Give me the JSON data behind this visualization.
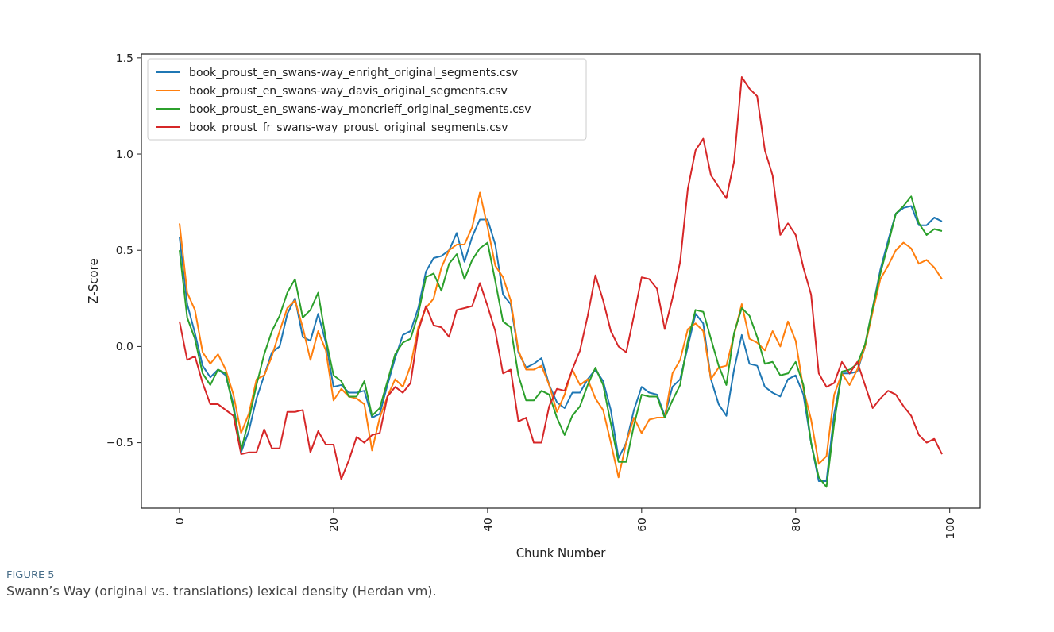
{
  "chart_data": {
    "type": "line",
    "xlabel": "Chunk Number",
    "ylabel": "Z-Score",
    "xlim": [
      -4.95,
      103.95
    ],
    "xticks": [
      0,
      20,
      40,
      60,
      80,
      100
    ],
    "ylim": [
      -0.84,
      1.52
    ],
    "yticks": [
      {
        "value": -0.5,
        "label": "−0.5"
      },
      {
        "value": 0,
        "label": "0.0"
      },
      {
        "value": 0.5,
        "label": "0.5"
      },
      {
        "value": 1,
        "label": "1.0"
      },
      {
        "value": 1.5,
        "label": "1.5"
      }
    ],
    "legend": "top left",
    "grid": false,
    "marker": "none",
    "line_style": "solid",
    "annotations": [
      "FIGURE 5",
      "Swann’s Way (original vs. translations) lexical density (Herdan vm)."
    ],
    "x": [
      0,
      1,
      2,
      3,
      4,
      5,
      6,
      7,
      8,
      9,
      10,
      11,
      12,
      13,
      14,
      15,
      16,
      17,
      18,
      19,
      20,
      21,
      22,
      23,
      24,
      25,
      26,
      27,
      28,
      29,
      30,
      31,
      32,
      33,
      34,
      35,
      36,
      37,
      38,
      39,
      40,
      41,
      42,
      43,
      44,
      45,
      46,
      47,
      48,
      49,
      50,
      51,
      52,
      53,
      54,
      55,
      56,
      57,
      58,
      59,
      60,
      61,
      62,
      63,
      64,
      65,
      66,
      67,
      68,
      69,
      70,
      71,
      72,
      73,
      74,
      75,
      76,
      77,
      78,
      79,
      80,
      81,
      82,
      83,
      84,
      85,
      86,
      87,
      88,
      89,
      90,
      91,
      92,
      93,
      94,
      95,
      96,
      97,
      98,
      99
    ],
    "series": [
      {
        "name": "book_proust_en_swans-way_enright_original_segments.csv",
        "color": "#1f77b4",
        "values": [
          0.57,
          0.22,
          0.07,
          -0.1,
          -0.16,
          -0.12,
          -0.15,
          -0.3,
          -0.55,
          -0.44,
          -0.27,
          -0.15,
          -0.03,
          0.0,
          0.17,
          0.25,
          0.05,
          0.03,
          0.17,
          0.02,
          -0.21,
          -0.2,
          -0.24,
          -0.24,
          -0.23,
          -0.37,
          -0.35,
          -0.2,
          -0.06,
          0.06,
          0.08,
          0.2,
          0.39,
          0.46,
          0.47,
          0.5,
          0.59,
          0.44,
          0.57,
          0.66,
          0.66,
          0.53,
          0.27,
          0.22,
          -0.03,
          -0.11,
          -0.09,
          -0.06,
          -0.2,
          -0.29,
          -0.32,
          -0.24,
          -0.24,
          -0.17,
          -0.12,
          -0.18,
          -0.33,
          -0.58,
          -0.5,
          -0.33,
          -0.21,
          -0.24,
          -0.25,
          -0.36,
          -0.21,
          -0.17,
          0.0,
          0.17,
          0.12,
          -0.17,
          -0.3,
          -0.36,
          -0.12,
          0.06,
          -0.09,
          -0.1,
          -0.21,
          -0.24,
          -0.26,
          -0.17,
          -0.15,
          -0.25,
          -0.5,
          -0.7,
          -0.7,
          -0.35,
          -0.14,
          -0.14,
          -0.13,
          0.0,
          0.2,
          0.4,
          0.55,
          0.69,
          0.72,
          0.73,
          0.63,
          0.63,
          0.67,
          0.65
        ]
      },
      {
        "name": "book_proust_en_swans-way_davis_original_segments.csv",
        "color": "#ff7f0e",
        "values": [
          0.64,
          0.28,
          0.19,
          -0.03,
          -0.09,
          -0.04,
          -0.12,
          -0.25,
          -0.45,
          -0.35,
          -0.17,
          -0.15,
          -0.05,
          0.08,
          0.2,
          0.24,
          0.1,
          -0.07,
          0.08,
          -0.02,
          -0.28,
          -0.22,
          -0.26,
          -0.27,
          -0.3,
          -0.54,
          -0.37,
          -0.26,
          -0.17,
          -0.21,
          -0.1,
          0.1,
          0.2,
          0.25,
          0.41,
          0.5,
          0.53,
          0.53,
          0.62,
          0.8,
          0.62,
          0.42,
          0.36,
          0.24,
          -0.02,
          -0.12,
          -0.12,
          -0.1,
          -0.2,
          -0.34,
          -0.25,
          -0.12,
          -0.2,
          -0.17,
          -0.27,
          -0.33,
          -0.5,
          -0.68,
          -0.5,
          -0.37,
          -0.45,
          -0.38,
          -0.37,
          -0.37,
          -0.14,
          -0.07,
          0.09,
          0.12,
          0.08,
          -0.17,
          -0.11,
          -0.1,
          0.06,
          0.22,
          0.04,
          0.02,
          -0.02,
          0.08,
          0.0,
          0.13,
          0.03,
          -0.22,
          -0.38,
          -0.61,
          -0.57,
          -0.25,
          -0.14,
          -0.2,
          -0.12,
          0.0,
          0.18,
          0.35,
          0.42,
          0.5,
          0.54,
          0.51,
          0.43,
          0.45,
          0.41,
          0.35
        ]
      },
      {
        "name": "book_proust_en_swans-way_moncrieff_original_segments.csv",
        "color": "#2ca02c",
        "values": [
          0.5,
          0.15,
          0.04,
          -0.14,
          -0.2,
          -0.12,
          -0.14,
          -0.32,
          -0.54,
          -0.38,
          -0.2,
          -0.04,
          0.08,
          0.16,
          0.28,
          0.35,
          0.15,
          0.19,
          0.28,
          0.04,
          -0.15,
          -0.18,
          -0.26,
          -0.26,
          -0.18,
          -0.36,
          -0.32,
          -0.18,
          -0.04,
          0.02,
          0.04,
          0.17,
          0.36,
          0.38,
          0.29,
          0.43,
          0.48,
          0.35,
          0.45,
          0.51,
          0.54,
          0.34,
          0.13,
          0.1,
          -0.15,
          -0.28,
          -0.28,
          -0.23,
          -0.25,
          -0.37,
          -0.46,
          -0.36,
          -0.31,
          -0.2,
          -0.11,
          -0.2,
          -0.4,
          -0.6,
          -0.6,
          -0.41,
          -0.25,
          -0.26,
          -0.26,
          -0.37,
          -0.28,
          -0.2,
          0.03,
          0.19,
          0.18,
          0.04,
          -0.1,
          -0.2,
          0.07,
          0.2,
          0.16,
          0.05,
          -0.09,
          -0.08,
          -0.15,
          -0.14,
          -0.08,
          -0.2,
          -0.5,
          -0.68,
          -0.73,
          -0.4,
          -0.13,
          -0.12,
          -0.09,
          0.01,
          0.2,
          0.38,
          0.53,
          0.69,
          0.73,
          0.78,
          0.64,
          0.58,
          0.61,
          0.6
        ]
      },
      {
        "name": "book_proust_fr_swans-way_proust_original_segments.csv",
        "color": "#d62728",
        "values": [
          0.13,
          -0.07,
          -0.05,
          -0.19,
          -0.3,
          -0.3,
          -0.33,
          -0.36,
          -0.56,
          -0.55,
          -0.55,
          -0.43,
          -0.53,
          -0.53,
          -0.34,
          -0.34,
          -0.33,
          -0.55,
          -0.44,
          -0.51,
          -0.51,
          -0.69,
          -0.59,
          -0.47,
          -0.5,
          -0.46,
          -0.45,
          -0.26,
          -0.21,
          -0.24,
          -0.19,
          0.08,
          0.21,
          0.11,
          0.1,
          0.05,
          0.19,
          0.2,
          0.21,
          0.33,
          0.21,
          0.08,
          -0.14,
          -0.12,
          -0.39,
          -0.37,
          -0.5,
          -0.5,
          -0.31,
          -0.22,
          -0.23,
          -0.12,
          -0.02,
          0.16,
          0.37,
          0.24,
          0.08,
          0.0,
          -0.03,
          0.16,
          0.36,
          0.35,
          0.3,
          0.09,
          0.25,
          0.44,
          0.82,
          1.02,
          1.08,
          0.89,
          0.83,
          0.77,
          0.96,
          1.4,
          1.34,
          1.3,
          1.02,
          0.89,
          0.58,
          0.64,
          0.58,
          0.41,
          0.27,
          -0.14,
          -0.21,
          -0.19,
          -0.08,
          -0.14,
          -0.08,
          -0.2,
          -0.32,
          -0.27,
          -0.23,
          -0.25,
          -0.31,
          -0.36,
          -0.46,
          -0.5,
          -0.48,
          -0.56
        ]
      }
    ]
  }
}
